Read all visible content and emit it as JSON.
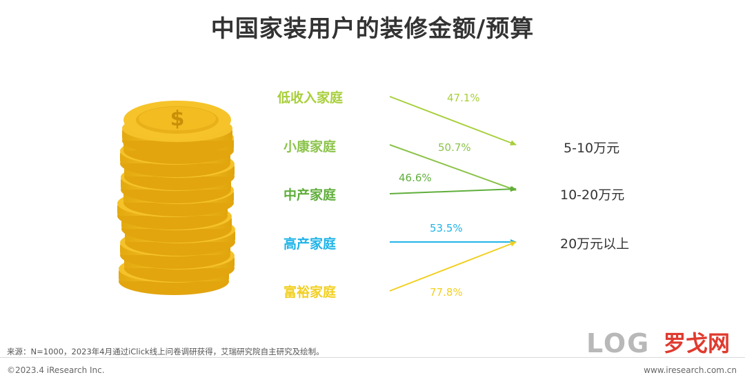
{
  "title": "中国家装用户的装修金额/预算",
  "groups": [
    {
      "label": "低收入家庭",
      "color": "#a7cf3a",
      "percent": "47.1%",
      "target": "5-10万元"
    },
    {
      "label": "小康家庭",
      "color": "#8bc34a",
      "percent": "50.7%",
      "target": "10-20万元"
    },
    {
      "label": "中产家庭",
      "color": "#5fae3a",
      "percent": "46.6%",
      "target": "10-20万元"
    },
    {
      "label": "高产家庭",
      "color": "#1fb3e8",
      "percent": "53.5%",
      "target": "20万元以上"
    },
    {
      "label": "富裕家庭",
      "color": "#f2cf1f",
      "percent": "77.8%",
      "target": "20万元以上"
    }
  ],
  "budgets": [
    "5-10万元",
    "10-20万元",
    "20万元以上"
  ],
  "footer": {
    "source": "来源：N=1000，2023年4月通过iClick线上问卷调研获得，艾瑞研究院自主研究及绘制。",
    "copyright": "©2023.4 iResearch Inc.",
    "website": "www.iresearch.com.cn"
  },
  "logo": {
    "letters": "LOG",
    "brand": "罗戈网"
  },
  "icons": {
    "coins": "coin-stack-icon",
    "dollar": "dollar-sign-icon"
  }
}
